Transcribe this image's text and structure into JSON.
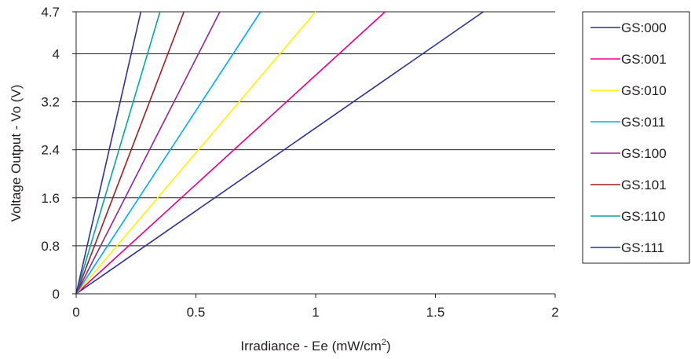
{
  "chart_data": {
    "type": "line",
    "title": "",
    "xlabel": "Irradiance - Ee (mW/cm",
    "xlabel_sup": "2",
    "xlabel_close": ")",
    "ylabel": "Voltage Output - Vo (V)",
    "xlim": [
      0,
      2
    ],
    "ylim": [
      0,
      4.7
    ],
    "x_ticks": [
      0,
      0.5,
      1,
      1.5,
      2
    ],
    "x_tick_labels": [
      "0",
      "0.5",
      "1",
      "1.5",
      "2"
    ],
    "y_ticks": [
      0,
      0.8,
      1.6,
      2.4,
      3.2,
      4,
      4.7
    ],
    "y_tick_labels": [
      "0",
      "0.8",
      "1.6",
      "2.4",
      "3.2",
      "4",
      "4.7"
    ],
    "grid": "horizontal",
    "legend_position": "right",
    "series": [
      {
        "name": "GS:000",
        "color": "#2e3192",
        "x": [
          0,
          1.7
        ],
        "y": [
          0,
          4.7
        ]
      },
      {
        "name": "GS:001",
        "color": "#ec008c",
        "x": [
          0,
          1.29
        ],
        "y": [
          0,
          4.7
        ]
      },
      {
        "name": "GS:010",
        "color": "#fff200",
        "x": [
          0,
          1.0
        ],
        "y": [
          0,
          4.7
        ]
      },
      {
        "name": "GS:011",
        "color": "#00aeef",
        "x": [
          0,
          0.77
        ],
        "y": [
          0,
          4.7
        ]
      },
      {
        "name": "GS:100",
        "color": "#92278f",
        "x": [
          0,
          0.6
        ],
        "y": [
          0,
          4.7
        ]
      },
      {
        "name": "GS:101",
        "color": "#9e1f22",
        "x": [
          0,
          0.45
        ],
        "y": [
          0,
          4.7
        ]
      },
      {
        "name": "GS:110",
        "color": "#00a99d",
        "x": [
          0,
          0.35
        ],
        "y": [
          0,
          4.7
        ]
      },
      {
        "name": "GS:111",
        "color": "#2e3192",
        "x": [
          0,
          0.27
        ],
        "y": [
          0,
          4.7
        ]
      }
    ]
  }
}
